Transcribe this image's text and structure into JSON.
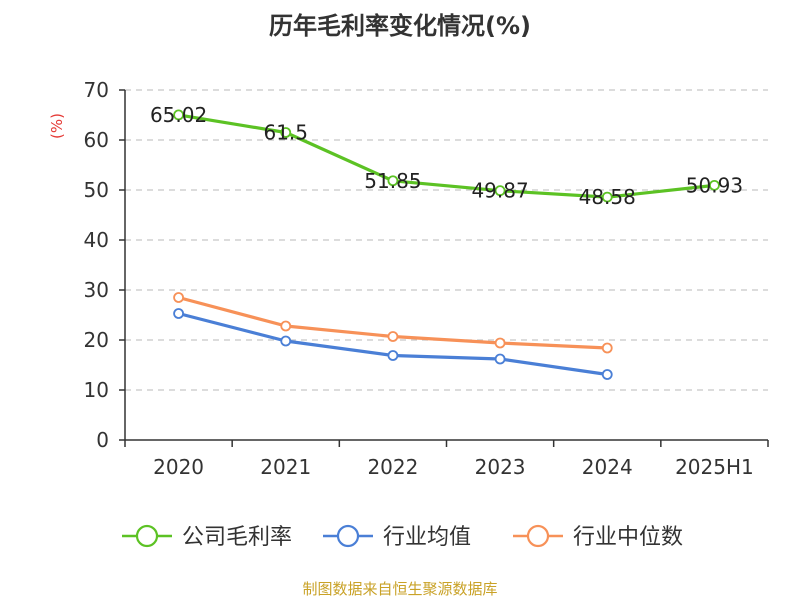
{
  "chart_data": {
    "type": "line",
    "title": "历年毛利率变化情况(%)",
    "ylabel": "(%)",
    "xlabel": "",
    "categories": [
      "2020",
      "2021",
      "2022",
      "2023",
      "2024",
      "2025H1"
    ],
    "ylim": [
      0,
      70
    ],
    "yticks": [
      0,
      10,
      20,
      30,
      40,
      50,
      60,
      70
    ],
    "grid": true,
    "legend_position": "bottom",
    "series": [
      {
        "name": "公司毛利率",
        "color": "#5cc224",
        "values": [
          65.02,
          61.5,
          51.85,
          49.87,
          48.58,
          50.93
        ],
        "labels": [
          "65.02",
          "61.5",
          "51.85",
          "49.87",
          "48.58",
          "50.93"
        ]
      },
      {
        "name": "行业均值",
        "color": "#4a7fd6",
        "values": [
          25.3,
          19.8,
          16.9,
          16.2,
          13.1,
          null
        ]
      },
      {
        "name": "行业中位数",
        "color": "#f79158",
        "values": [
          28.5,
          22.8,
          20.7,
          19.4,
          18.4,
          null
        ]
      }
    ]
  },
  "source_note": "制图数据来自恒生聚源数据库"
}
